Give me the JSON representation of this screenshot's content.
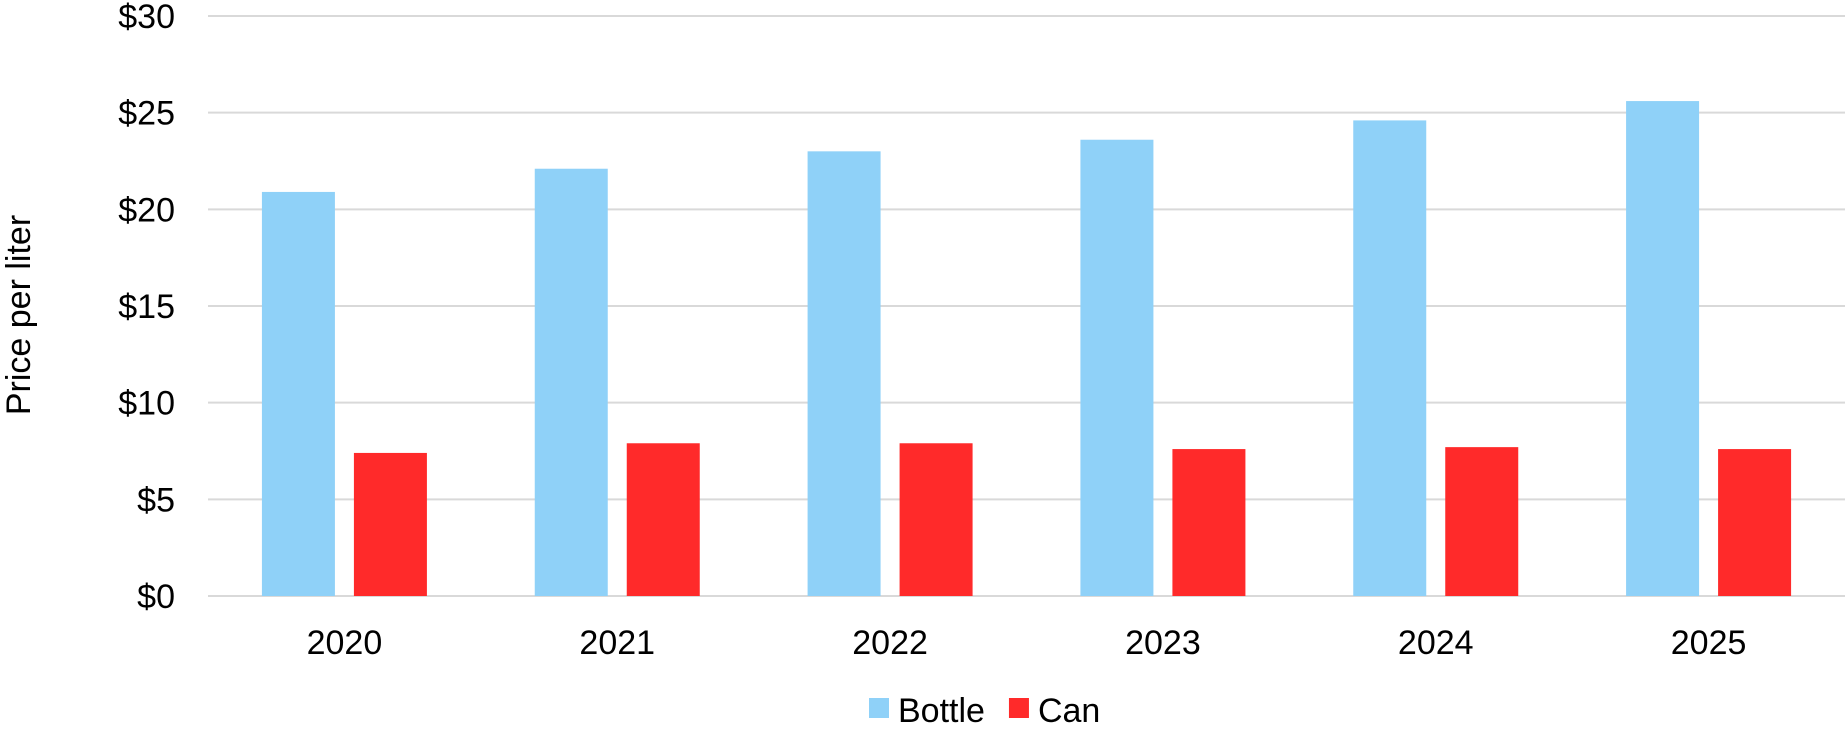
{
  "chart_data": {
    "type": "bar",
    "title": "",
    "xlabel": "",
    "ylabel": "Price per liter",
    "categories": [
      "2020",
      "2021",
      "2022",
      "2023",
      "2024",
      "2025"
    ],
    "series": [
      {
        "name": "Bottle",
        "color": "#8fd1f8",
        "values": [
          20.9,
          22.1,
          23.0,
          23.6,
          24.6,
          25.6
        ]
      },
      {
        "name": "Can",
        "color": "#ff2a2a",
        "values": [
          7.4,
          7.9,
          7.9,
          7.6,
          7.7,
          7.6
        ]
      }
    ],
    "ylim": [
      0,
      30
    ],
    "yticks": [
      0,
      5,
      10,
      15,
      20,
      25,
      30
    ],
    "ytick_labels": [
      "$0",
      "$5",
      "$10",
      "$15",
      "$20",
      "$25",
      "$30"
    ],
    "grid": true,
    "legend_position": "bottom-center"
  }
}
